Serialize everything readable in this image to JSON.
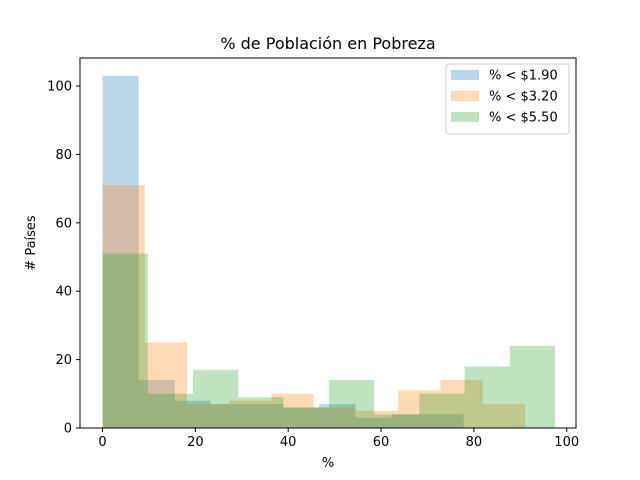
{
  "chart_data": {
    "type": "histogram",
    "title": "% de Población en Pobreza",
    "xlabel": "%",
    "ylabel": "# Países",
    "xlim": [
      -4.85,
      102.0
    ],
    "ylim": [
      0,
      108.2
    ],
    "xticks": [
      0,
      20,
      40,
      60,
      80,
      100
    ],
    "yticks": [
      0,
      20,
      40,
      60,
      80,
      100
    ],
    "grid": false,
    "legend_position": "top-right",
    "alpha": 0.3,
    "series": [
      {
        "name": "% < $1.90",
        "color": "#1f77b4",
        "bins": [
          {
            "x0": 0.0,
            "x1": 7.78,
            "count": 103
          },
          {
            "x0": 7.78,
            "x1": 15.56,
            "count": 14
          },
          {
            "x0": 15.56,
            "x1": 23.34,
            "count": 8
          },
          {
            "x0": 23.34,
            "x1": 31.12,
            "count": 7
          },
          {
            "x0": 31.12,
            "x1": 38.9,
            "count": 7
          },
          {
            "x0": 38.9,
            "x1": 46.68,
            "count": 6
          },
          {
            "x0": 46.68,
            "x1": 54.46,
            "count": 7
          },
          {
            "x0": 54.46,
            "x1": 62.24,
            "count": 3
          },
          {
            "x0": 62.24,
            "x1": 70.02,
            "count": 4
          },
          {
            "x0": 70.02,
            "x1": 77.8,
            "count": 4
          }
        ]
      },
      {
        "name": "% < $3.20",
        "color": "#ff7f0e",
        "bins": [
          {
            "x0": 0.0,
            "x1": 9.1,
            "count": 71
          },
          {
            "x0": 9.1,
            "x1": 18.2,
            "count": 25
          },
          {
            "x0": 18.2,
            "x1": 27.3,
            "count": 7
          },
          {
            "x0": 27.3,
            "x1": 36.4,
            "count": 8
          },
          {
            "x0": 36.4,
            "x1": 45.5,
            "count": 10
          },
          {
            "x0": 45.5,
            "x1": 54.6,
            "count": 6
          },
          {
            "x0": 54.6,
            "x1": 63.7,
            "count": 5
          },
          {
            "x0": 63.7,
            "x1": 72.8,
            "count": 11
          },
          {
            "x0": 72.8,
            "x1": 81.9,
            "count": 14
          },
          {
            "x0": 81.9,
            "x1": 91.0,
            "count": 7
          }
        ]
      },
      {
        "name": "% < $5.50",
        "color": "#2ca02c",
        "bins": [
          {
            "x0": 0.0,
            "x1": 9.75,
            "count": 51
          },
          {
            "x0": 9.75,
            "x1": 19.5,
            "count": 10
          },
          {
            "x0": 19.5,
            "x1": 29.25,
            "count": 17
          },
          {
            "x0": 29.25,
            "x1": 39.0,
            "count": 9
          },
          {
            "x0": 39.0,
            "x1": 48.75,
            "count": 6
          },
          {
            "x0": 48.75,
            "x1": 58.5,
            "count": 14
          },
          {
            "x0": 58.5,
            "x1": 68.25,
            "count": 4
          },
          {
            "x0": 68.25,
            "x1": 78.0,
            "count": 10
          },
          {
            "x0": 78.0,
            "x1": 87.75,
            "count": 18
          },
          {
            "x0": 87.75,
            "x1": 97.5,
            "count": 24
          }
        ]
      }
    ]
  }
}
